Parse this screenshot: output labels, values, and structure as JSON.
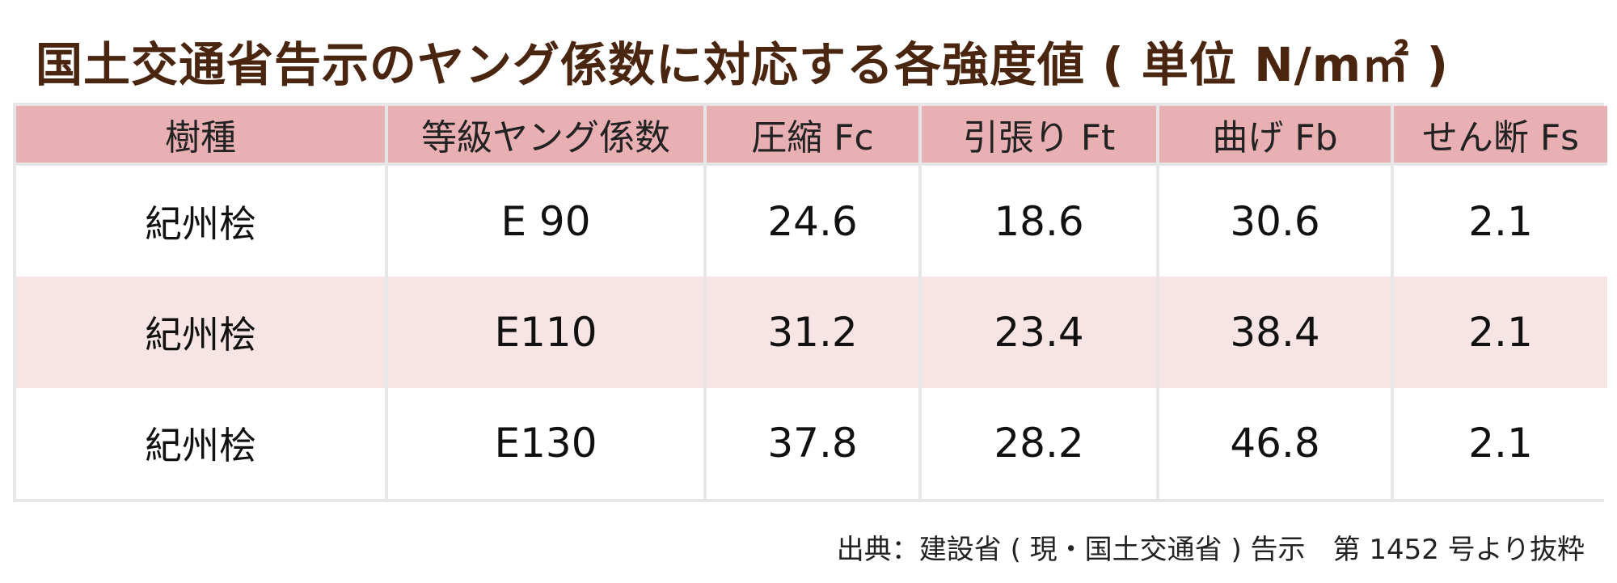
{
  "title": "国土交通省告示のヤング係数に対応する各強度値 ( 単位 N/m㎡ )",
  "table": {
    "headers": [
      "樹種",
      "等級ヤング係数",
      "圧縮 Fc",
      "引張り Ft",
      "曲げ Fb",
      "せん断 Fs"
    ],
    "rows": [
      [
        "紀州桧",
        "E 90",
        "24.6",
        "18.6",
        "30.6",
        "2.1"
      ],
      [
        "紀州桧",
        "E110",
        "31.2",
        "23.4",
        "38.4",
        "2.1"
      ],
      [
        "紀州桧",
        "E130",
        "37.8",
        "28.2",
        "46.8",
        "2.1"
      ]
    ]
  },
  "source": "出典：建設省 ( 現・国土交通省 ) 告示　第 1452 号より抜粋",
  "colors": {
    "title": "#4a2510",
    "header_bg": "#e8b0b3",
    "alt_row_bg": "#f7e4e5",
    "grid": "#e6e6e6"
  }
}
